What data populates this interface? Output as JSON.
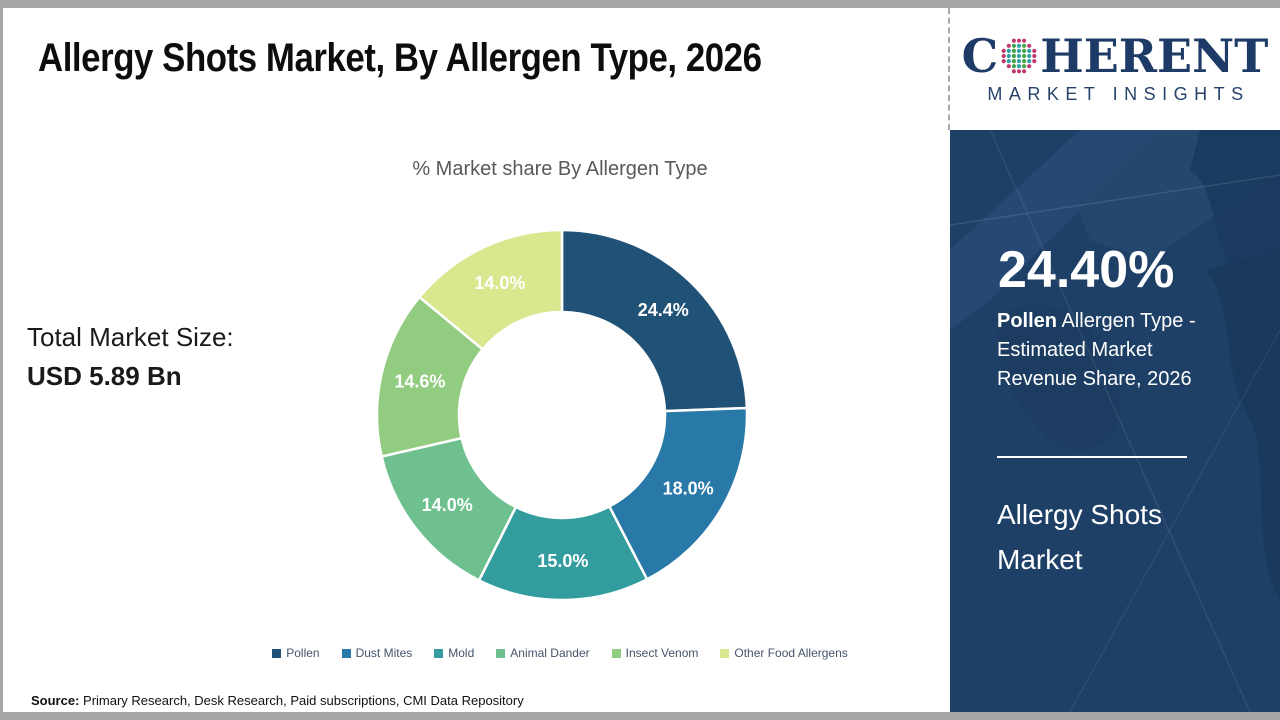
{
  "header": {
    "title": "Allergy Shots Market, By Allergen Type, 2026"
  },
  "logo": {
    "prefix": "C",
    "suffix": "HERENT",
    "subtitle": "MARKET INSIGHTS",
    "brand_navy": "#1E3A66"
  },
  "left_panel": {
    "total_label": "Total Market Size:",
    "total_value": "USD 5.89 Bn"
  },
  "chart_data": {
    "type": "pie",
    "donut": true,
    "title": "% Market share By Allergen Type",
    "start_angle_deg": 0,
    "direction": "clockwise",
    "label_color": "#ffffff",
    "legend_position": "bottom",
    "segments": [
      {
        "label": "Pollen",
        "value": 24.4,
        "display": "24.4%",
        "color": "#205177"
      },
      {
        "label": "Dust Mites",
        "value": 18.0,
        "display": "18.0%",
        "color": "#2979A8"
      },
      {
        "label": "Mold",
        "value": 15.0,
        "display": "15.0%",
        "color": "#339C9E"
      },
      {
        "label": "Animal Dander",
        "value": 14.0,
        "display": "14.0%",
        "color": "#6EC08F"
      },
      {
        "label": "Insect Venom",
        "value": 14.6,
        "display": "14.6%",
        "color": "#92CC81"
      },
      {
        "label": "Other Food Allergens",
        "value": 14.0,
        "display": "14.0%",
        "color": "#D9E78F"
      }
    ]
  },
  "sidebar": {
    "panel_bg": "#1F4066",
    "highlight_value": "24.40%",
    "highlight_bold": "Pollen",
    "highlight_rest": " Allergen Type - Estimated Market Revenue Share, 2026",
    "panel_title": "Allergy Shots Market"
  },
  "footer": {
    "source_label": "Source:",
    "source_text": " Primary Research, Desk Research, Paid subscriptions, CMI Data Repository"
  }
}
